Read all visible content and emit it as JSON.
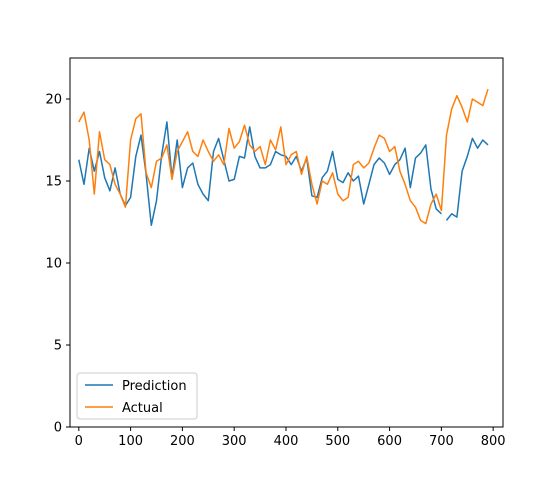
{
  "chart_data": {
    "type": "line",
    "title": "",
    "xlabel": "",
    "ylabel": "",
    "xlim": [
      -17,
      819
    ],
    "ylim": [
      0,
      22.5
    ],
    "xticks": [
      0,
      100,
      200,
      300,
      400,
      500,
      600,
      700,
      800
    ],
    "yticks": [
      0,
      5,
      10,
      15,
      20
    ],
    "grid": false,
    "legend_position": "lower-left",
    "x_start": 0,
    "x_step": 10,
    "series": [
      {
        "name": "Prediction",
        "color": "#1f77b4",
        "values": [
          16.3,
          14.8,
          17.0,
          15.6,
          16.8,
          15.2,
          14.4,
          15.8,
          14.2,
          13.5,
          14.0,
          16.5,
          17.8,
          15.4,
          12.3,
          13.8,
          16.6,
          18.6,
          15.2,
          17.5,
          14.6,
          15.8,
          16.1,
          14.8,
          14.2,
          13.8,
          16.8,
          17.6,
          16.3,
          15.0,
          15.1,
          16.5,
          16.4,
          18.3,
          16.5,
          15.8,
          15.8,
          16.0,
          16.8,
          16.6,
          16.5,
          16.0,
          16.5,
          15.6,
          16.4,
          14.1,
          14.0,
          15.2,
          15.6,
          16.8,
          15.1,
          14.9,
          15.5,
          15.0,
          15.3,
          13.6,
          14.8,
          16.0,
          16.4,
          16.1,
          15.4,
          16.0,
          16.3,
          17.0,
          14.6,
          16.4,
          16.7,
          17.2,
          14.5,
          13.3,
          13.0,
          12.6,
          13.0,
          12.8,
          15.6,
          16.5,
          17.6,
          17.0,
          17.5,
          17.2
        ],
        "visible_range": [
          0,
          700
        ]
      },
      {
        "name": "Actual",
        "color": "#ff7f0e",
        "values": [
          18.6,
          19.2,
          17.5,
          14.2,
          18.0,
          16.3,
          16.0,
          14.8,
          14.2,
          13.4,
          17.5,
          18.8,
          19.1,
          15.5,
          14.6,
          16.2,
          16.4,
          17.2,
          15.1,
          16.8,
          17.4,
          18.0,
          16.8,
          16.5,
          17.5,
          16.8,
          16.2,
          16.6,
          16.0,
          18.2,
          17.0,
          17.4,
          18.4,
          17.2,
          16.8,
          17.1,
          16.0,
          17.5,
          16.9,
          18.3,
          16.0,
          16.6,
          16.8,
          15.4,
          16.5,
          14.8,
          13.6,
          15.0,
          14.8,
          15.5,
          14.2,
          13.8,
          14.0,
          16.0,
          16.2,
          15.8,
          16.1,
          17.0,
          17.8,
          17.6,
          16.8,
          17.1,
          15.6,
          14.8,
          13.8,
          13.4,
          12.6,
          12.4,
          13.6,
          14.2,
          13.2,
          17.8,
          19.4,
          20.2,
          19.5,
          18.6,
          20.0,
          19.8,
          19.6,
          20.6
        ]
      }
    ]
  }
}
